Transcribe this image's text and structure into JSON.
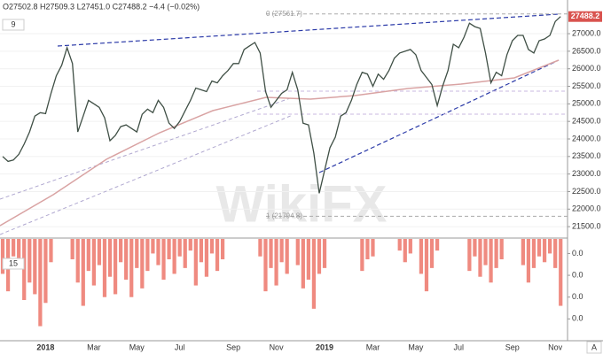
{
  "header": {
    "ohlc": "O27502.8 H27509.3 L27451.0 C27488.2 −4.4 (−0.02%)"
  },
  "watermark": "WikiFX",
  "corner_label": "A",
  "chart_data": [
    {
      "type": "line",
      "study_label": "9",
      "color": "#3f4f45",
      "grid": true,
      "last_price_label": "27488.2",
      "annotations": [
        "0 (27561.7)",
        "1 (21794.8)"
      ],
      "fib_levels": [
        27561.7,
        21794.8
      ],
      "categories": [
        null,
        null,
        null,
        null,
        null,
        null,
        null,
        null,
        "2018",
        null,
        null,
        null,
        null,
        null,
        null,
        null,
        null,
        "Mar",
        null,
        null,
        null,
        null,
        null,
        null,
        null,
        "May",
        null,
        null,
        null,
        null,
        null,
        null,
        null,
        "Jul",
        null,
        null,
        null,
        null,
        null,
        null,
        null,
        null,
        null,
        "Sep",
        null,
        null,
        null,
        null,
        null,
        null,
        null,
        "Nov",
        null,
        null,
        null,
        null,
        null,
        null,
        null,
        null,
        "2019",
        null,
        null,
        null,
        null,
        null,
        null,
        null,
        null,
        "Mar",
        null,
        null,
        null,
        null,
        null,
        null,
        null,
        "May",
        null,
        null,
        null,
        null,
        null,
        null,
        null,
        "Jul",
        null,
        null,
        null,
        null,
        null,
        null,
        null,
        null,
        null,
        "Sep",
        null,
        null,
        null,
        null,
        null,
        null,
        null,
        "Nov",
        null
      ],
      "values": [
        23500,
        23360,
        23400,
        23560,
        23850,
        24200,
        24650,
        24750,
        24720,
        25300,
        25800,
        26100,
        26600,
        26150,
        24200,
        24650,
        25100,
        25000,
        24900,
        24600,
        23950,
        24100,
        24350,
        24400,
        24300,
        24200,
        24700,
        24850,
        24750,
        25100,
        24900,
        24450,
        24300,
        24500,
        24800,
        25100,
        25450,
        25400,
        25350,
        25650,
        25600,
        25800,
        25950,
        26150,
        26150,
        26550,
        26650,
        26750,
        26450,
        25350,
        24900,
        25100,
        25300,
        25400,
        25900,
        25400,
        24450,
        24400,
        23600,
        22450,
        23100,
        23750,
        24050,
        24650,
        24750,
        25100,
        25550,
        25900,
        25850,
        25500,
        25850,
        25700,
        25950,
        26300,
        26450,
        26500,
        26550,
        26400,
        25950,
        25750,
        25550,
        24950,
        25500,
        25950,
        26700,
        26600,
        26900,
        27300,
        27200,
        27150,
        26450,
        25600,
        25900,
        25800,
        26400,
        26800,
        26950,
        26950,
        26550,
        26450,
        26800,
        26850,
        26950,
        27350,
        27488.2
      ],
      "ylim": [
        21200,
        27960
      ],
      "yticks": [
        {
          "value": 21500,
          "label": "21500.0"
        },
        {
          "value": 22000,
          "label": "22000.0"
        },
        {
          "value": 22500,
          "label": "22500.0"
        },
        {
          "value": 23000,
          "label": "23000.0"
        },
        {
          "value": 23500,
          "label": "23500.0"
        },
        {
          "value": 24000,
          "label": "24000.0"
        },
        {
          "value": 24500,
          "label": "24500.0"
        },
        {
          "value": 25000,
          "label": "25000.0"
        },
        {
          "value": 25500,
          "label": "25500.0"
        },
        {
          "value": 26000,
          "label": "26000.0"
        },
        {
          "value": 26500,
          "label": "26500.0"
        },
        {
          "value": 27000,
          "label": "27000.0"
        }
      ]
    },
    {
      "type": "bar",
      "study_label": "15",
      "color": "#ef8a80",
      "values": [
        -1.2,
        -1.8,
        -0.6,
        -1.0,
        -2.1,
        -1.5,
        -1.9,
        -3.0,
        -2.2,
        -0.8,
        0,
        0,
        0,
        -0.7,
        -1.5,
        -2.3,
        -1.1,
        -1.6,
        -0.9,
        -2.0,
        -1.3,
        -1.9,
        -0.8,
        -1.4,
        -2.0,
        -1.0,
        -1.7,
        -1.1,
        -0.5,
        -0.9,
        -1.4,
        -0.7,
        -1.2,
        -0.6,
        -1.0,
        -0.4,
        -1.6,
        -0.8,
        -1.3,
        -0.5,
        -1.1,
        -0.7,
        0,
        0,
        0,
        0,
        0,
        0,
        -0.6,
        -1.8,
        -1.0,
        -1.6,
        -0.8,
        -1.2,
        0,
        -0.9,
        -1.7,
        -1.4,
        -2.4,
        -1.2,
        -1.0,
        0,
        0,
        0,
        0,
        0,
        0,
        -1.1,
        -0.7,
        -0.6,
        0,
        0,
        0,
        0,
        -0.4,
        -0.8,
        -0.5,
        0,
        -1.2,
        -1.8,
        -1.0,
        -0.4,
        0,
        0,
        0,
        0,
        0,
        -1.1,
        -0.6,
        -1.3,
        -0.9,
        -1.5,
        -1.0,
        -0.7,
        0,
        0,
        0,
        -0.9,
        -1.5,
        -1.0,
        -0.6,
        -0.8,
        -0.5,
        -1.0,
        -2.3
      ],
      "ylim": [
        -3.5,
        0
      ],
      "yticks": [
        {
          "value": -0.5,
          "label": "0.0"
        },
        {
          "value": -1.25,
          "label": "0.0"
        },
        {
          "value": -2,
          "label": "0.0"
        },
        {
          "value": -2.75,
          "label": "0.0"
        }
      ]
    }
  ]
}
